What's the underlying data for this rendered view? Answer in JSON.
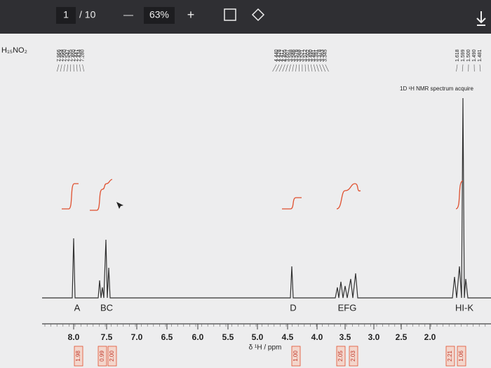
{
  "toolbar": {
    "page": "1",
    "total": "/ 10",
    "zoom": "63%",
    "minus": "—",
    "plus": "+"
  },
  "document": {
    "formula": "H₁₅NO₂",
    "title": "1D ¹H NMR spectrum acquire",
    "peak_groups": [
      [
        "7.966",
        "7.954",
        "7.560",
        "7.547",
        "7.535",
        "7.460",
        "7.447",
        "7.434",
        "7.280"
      ],
      [
        "4.440",
        "4.428",
        "4.417",
        "4.405",
        "3.607",
        "3.598",
        "3.586",
        "3.576",
        "3.568",
        "3.521",
        "3.512",
        "3.502",
        "3.490",
        "3.481",
        "3.391",
        "3.378",
        "3.363",
        "3.345"
      ],
      [
        "1.618",
        "1.599",
        "1.500",
        "1.490",
        "1.481"
      ]
    ],
    "regions": [
      "A",
      "BC",
      "D",
      "EFG",
      "HI-K"
    ],
    "axis_ticks": [
      "8.0",
      "7.5",
      "7.0",
      "6.5",
      "6.0",
      "5.5",
      "5.0",
      "4.5",
      "4.0",
      "3.5",
      "3.0",
      "2.5",
      "2.0"
    ],
    "axis_label": "δ ¹H / ppm",
    "integrals": [
      "1.98",
      "0.99",
      "2.00",
      "1.00",
      "2.05",
      "2.03",
      "2.21",
      "1.06"
    ]
  }
}
